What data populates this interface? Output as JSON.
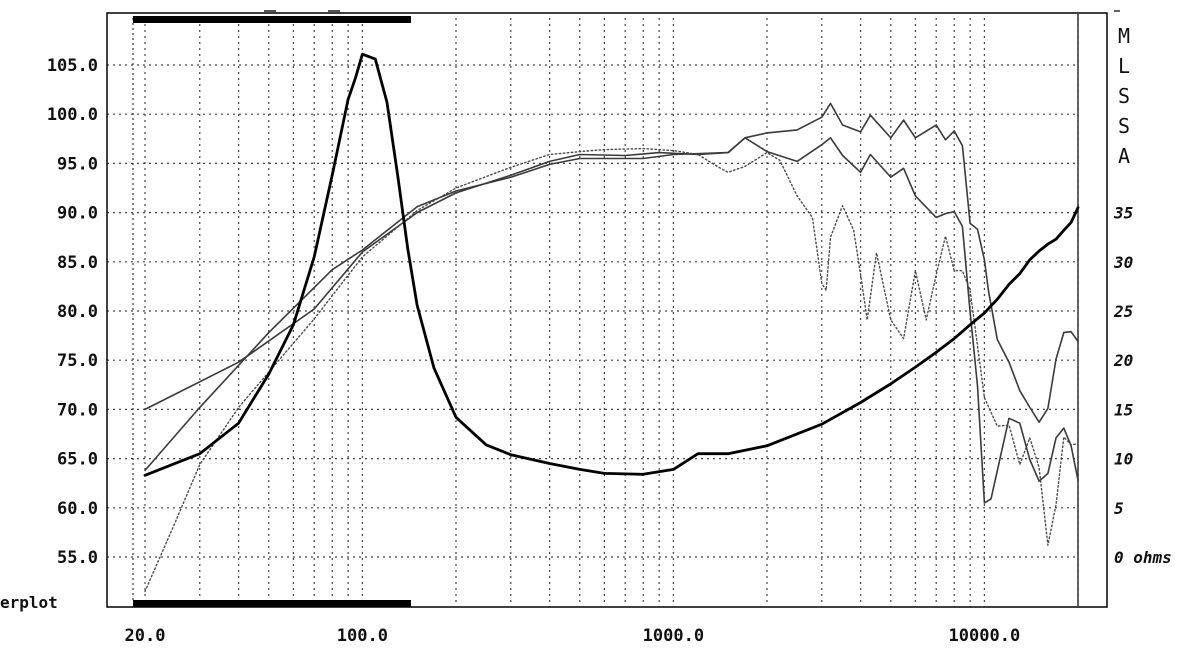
{
  "chart_data": {
    "type": "line",
    "x_scale": "log",
    "xlim": [
      17.5,
      20000
    ],
    "ylim": [
      50.0,
      110.0
    ],
    "right_ylim": [
      -5,
      55
    ],
    "grid": true,
    "x_tick_labels": [
      "20.0",
      "100.0",
      "1000.0",
      "10000.0"
    ],
    "x_tick_values": [
      20,
      100,
      1000,
      10000
    ],
    "y_tick_labels": [
      "55.0",
      "60.0",
      "65.0",
      "70.0",
      "75.0",
      "80.0",
      "85.0",
      "90.0",
      "95.0",
      "100.0",
      "105.0"
    ],
    "right_tick_labels": [
      "0 ohms",
      "5",
      "10",
      "15",
      "20",
      "25",
      "30",
      "35"
    ],
    "right_title": "MLSSA",
    "left_clipped_label": "erplot",
    "colors": {
      "primary_curve": "#3a3a3a",
      "impedance": "#000000",
      "grid": "#555555",
      "frame": "#000000"
    },
    "series": [
      {
        "axis": "left",
        "style": "solid",
        "points": [
          [
            20,
            70
          ],
          [
            40,
            74.8
          ],
          [
            70,
            80.2
          ],
          [
            100,
            86
          ],
          [
            150,
            90
          ],
          [
            200,
            92
          ],
          [
            300,
            93.8
          ],
          [
            400,
            95.2
          ],
          [
            500,
            95.9
          ],
          [
            700,
            95.8
          ],
          [
            900,
            96.1
          ],
          [
            1200,
            95.9
          ],
          [
            1500,
            96.1
          ],
          [
            1700,
            97.6
          ],
          [
            2000,
            98.1
          ],
          [
            2500,
            98.4
          ],
          [
            3000,
            99.7
          ],
          [
            3200,
            101.1
          ],
          [
            3500,
            98.9
          ],
          [
            4000,
            98.2
          ],
          [
            4300,
            99.9
          ],
          [
            5000,
            97.6
          ],
          [
            5500,
            99.4
          ],
          [
            6000,
            97.6
          ],
          [
            7000,
            98.9
          ],
          [
            7500,
            97.4
          ],
          [
            8000,
            98.3
          ],
          [
            8500,
            96.8
          ],
          [
            9000,
            88.9
          ],
          [
            9500,
            88.3
          ],
          [
            10000,
            85.2
          ],
          [
            10300,
            82.1
          ],
          [
            11000,
            77.1
          ],
          [
            12000,
            74.8
          ],
          [
            13000,
            71.9
          ],
          [
            14000,
            70.2
          ],
          [
            15000,
            68.7
          ],
          [
            16000,
            70.1
          ],
          [
            17000,
            75.1
          ],
          [
            18000,
            77.8
          ],
          [
            19000,
            77.9
          ],
          [
            20000,
            76.9
          ]
        ]
      },
      {
        "axis": "left",
        "style": "solid",
        "points": [
          [
            20,
            63.8
          ],
          [
            30,
            70.2
          ],
          [
            50,
            77.8
          ],
          [
            80,
            84.2
          ],
          [
            100,
            86.2
          ],
          [
            150,
            90.6
          ],
          [
            200,
            92.2
          ],
          [
            300,
            93.6
          ],
          [
            400,
            94.9
          ],
          [
            500,
            95.5
          ],
          [
            800,
            95.5
          ],
          [
            1000,
            95.9
          ],
          [
            1500,
            96.1
          ],
          [
            1700,
            97.6
          ],
          [
            2000,
            96.2
          ],
          [
            2500,
            95.2
          ],
          [
            3000,
            96.9
          ],
          [
            3200,
            97.6
          ],
          [
            3500,
            95.8
          ],
          [
            4000,
            94.1
          ],
          [
            4300,
            95.9
          ],
          [
            5000,
            93.6
          ],
          [
            5500,
            94.5
          ],
          [
            6000,
            91.7
          ],
          [
            7000,
            89.5
          ],
          [
            7500,
            89.9
          ],
          [
            8000,
            90.1
          ],
          [
            8500,
            88.6
          ],
          [
            9000,
            79.9
          ],
          [
            9500,
            72.4
          ],
          [
            10000,
            60.5
          ],
          [
            10500,
            60.9
          ],
          [
            12000,
            69.1
          ],
          [
            13000,
            68.6
          ],
          [
            14000,
            64.9
          ],
          [
            15000,
            62.7
          ],
          [
            16000,
            63.5
          ],
          [
            17000,
            67.1
          ],
          [
            18000,
            68.1
          ],
          [
            19000,
            66.3
          ],
          [
            20000,
            62.8
          ]
        ]
      },
      {
        "axis": "left",
        "style": "dotted",
        "points": [
          [
            20,
            51.5
          ],
          [
            25,
            58.5
          ],
          [
            30,
            64.4
          ],
          [
            40,
            70.2
          ],
          [
            50,
            73.8
          ],
          [
            70,
            79.2
          ],
          [
            100,
            85.5
          ],
          [
            150,
            90.2
          ],
          [
            200,
            92.5
          ],
          [
            300,
            94.6
          ],
          [
            400,
            95.9
          ],
          [
            500,
            96.2
          ],
          [
            600,
            96.4
          ],
          [
            800,
            96.5
          ],
          [
            1000,
            96.3
          ],
          [
            1200,
            95.9
          ],
          [
            1400,
            94.6
          ],
          [
            1500,
            94.1
          ],
          [
            1700,
            94.7
          ],
          [
            2000,
            96.1
          ],
          [
            2200,
            95.3
          ],
          [
            2500,
            91.7
          ],
          [
            2800,
            89.5
          ],
          [
            3000,
            82.8
          ],
          [
            3100,
            82.1
          ],
          [
            3200,
            87.5
          ],
          [
            3500,
            90.7
          ],
          [
            3800,
            88.2
          ],
          [
            4000,
            83.7
          ],
          [
            4200,
            79.1
          ],
          [
            4500,
            85.9
          ],
          [
            5000,
            79.1
          ],
          [
            5500,
            77.2
          ],
          [
            6000,
            84.1
          ],
          [
            6500,
            79.1
          ],
          [
            7000,
            83.7
          ],
          [
            7500,
            87.6
          ],
          [
            8000,
            84.1
          ],
          [
            8500,
            84.1
          ],
          [
            9000,
            82.1
          ],
          [
            10000,
            71.2
          ],
          [
            11000,
            68.3
          ],
          [
            12000,
            68.4
          ],
          [
            13000,
            64.4
          ],
          [
            14000,
            67.1
          ],
          [
            15000,
            64.1
          ],
          [
            16000,
            56.2
          ],
          [
            17000,
            60.3
          ],
          [
            18000,
            67.2
          ],
          [
            19000,
            66.4
          ],
          [
            20000,
            66.5
          ]
        ]
      },
      {
        "axis": "right",
        "style": "bold",
        "points": [
          [
            20,
            8.3
          ],
          [
            30,
            10.5
          ],
          [
            40,
            13.6
          ],
          [
            50,
            18.6
          ],
          [
            60,
            23.6
          ],
          [
            70,
            30.5
          ],
          [
            80,
            38.8
          ],
          [
            90,
            46.5
          ],
          [
            95,
            48.7
          ],
          [
            100,
            51.1
          ],
          [
            110,
            50.6
          ],
          [
            120,
            46.2
          ],
          [
            130,
            38.7
          ],
          [
            140,
            31.3
          ],
          [
            150,
            25.6
          ],
          [
            170,
            19.2
          ],
          [
            200,
            14.2
          ],
          [
            250,
            11.4
          ],
          [
            300,
            10.4
          ],
          [
            400,
            9.5
          ],
          [
            500,
            8.9
          ],
          [
            600,
            8.5
          ],
          [
            800,
            8.4
          ],
          [
            1000,
            8.9
          ],
          [
            1200,
            10.5
          ],
          [
            1500,
            10.5
          ],
          [
            2000,
            11.3
          ],
          [
            3000,
            13.5
          ],
          [
            4000,
            15.7
          ],
          [
            5000,
            17.6
          ],
          [
            6000,
            19.3
          ],
          [
            7000,
            20.8
          ],
          [
            8000,
            22.2
          ],
          [
            9000,
            23.6
          ],
          [
            10000,
            24.8
          ],
          [
            11000,
            26.2
          ],
          [
            12000,
            27.7
          ],
          [
            13000,
            28.8
          ],
          [
            14000,
            30.2
          ],
          [
            15000,
            31.1
          ],
          [
            16000,
            31.8
          ],
          [
            17000,
            32.3
          ],
          [
            18000,
            33.2
          ],
          [
            19000,
            34.0
          ],
          [
            20000,
            35.5
          ]
        ]
      }
    ]
  }
}
